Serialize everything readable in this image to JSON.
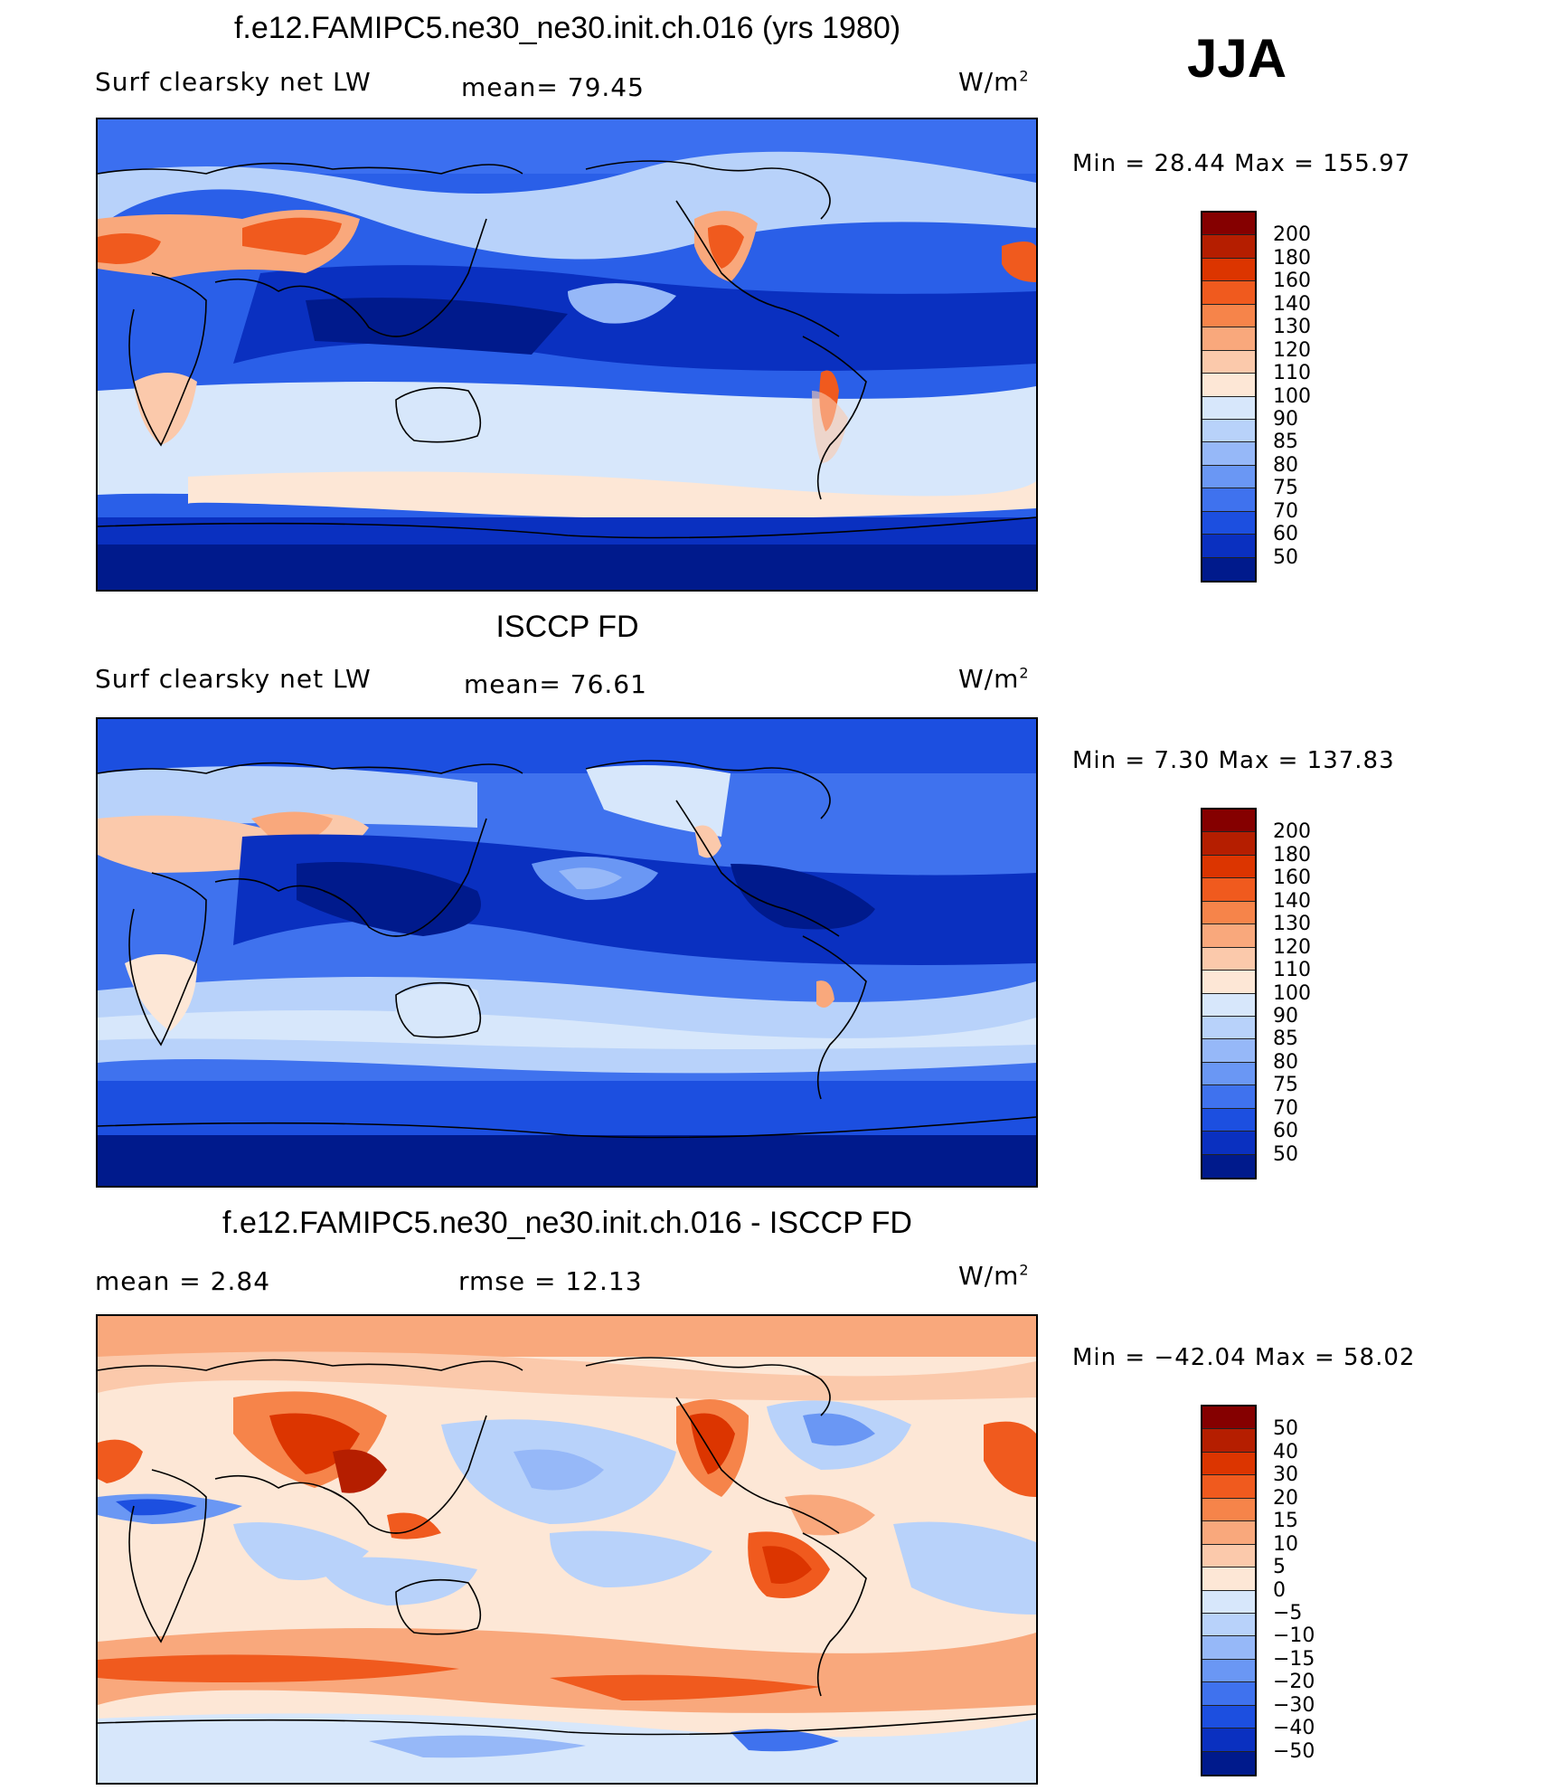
{
  "season": "JJA",
  "panels": [
    {
      "title": "f.e12.FAMIPC5.ne30_ne30.init.ch.016 (yrs 1980)",
      "left_label": "Surf clearsky net LW",
      "mid_label": "mean=   79.45",
      "units": "W/m",
      "units_sup": "2",
      "min_max": "Min =   28.44 Max = 155.97",
      "colorbar_labels": [
        "200",
        "180",
        "160",
        "140",
        "130",
        "120",
        "110",
        "100",
        "90",
        "85",
        "80",
        "75",
        "70",
        "60",
        "50"
      ],
      "colorbar_colors": [
        "#850000",
        "#b51e00",
        "#dc3500",
        "#f05a1e",
        "#f6844a",
        "#f9a87c",
        "#fbc9ab",
        "#fde7d6",
        "#d7e7fb",
        "#b8d2fa",
        "#96b8f8",
        "#6a97f4",
        "#3f72ee",
        "#1c4fe0",
        "#0a30c0",
        "#001a8c"
      ]
    },
    {
      "title": "ISCCP FD",
      "left_label": "Surf clearsky net LW",
      "mid_label": "mean=   76.61",
      "units": "W/m",
      "units_sup": "2",
      "min_max": "Min =    7.30 Max = 137.83",
      "colorbar_labels": [
        "200",
        "180",
        "160",
        "140",
        "130",
        "120",
        "110",
        "100",
        "90",
        "85",
        "80",
        "75",
        "70",
        "60",
        "50"
      ],
      "colorbar_colors": [
        "#850000",
        "#b51e00",
        "#dc3500",
        "#f05a1e",
        "#f6844a",
        "#f9a87c",
        "#fbc9ab",
        "#fde7d6",
        "#d7e7fb",
        "#b8d2fa",
        "#96b8f8",
        "#6a97f4",
        "#3f72ee",
        "#1c4fe0",
        "#0a30c0",
        "#001a8c"
      ]
    },
    {
      "title": "f.e12.FAMIPC5.ne30_ne30.init.ch.016 - ISCCP FD",
      "left_label": "mean =    2.84",
      "mid_label": "rmse =   12.13",
      "units": "W/m",
      "units_sup": "2",
      "min_max": "Min = −42.04 Max =  58.02",
      "colorbar_labels": [
        "50",
        "40",
        "30",
        "20",
        "15",
        "10",
        "5",
        "0",
        "−5",
        "−10",
        "−15",
        "−20",
        "−30",
        "−40",
        "−50"
      ],
      "colorbar_colors": [
        "#850000",
        "#b51e00",
        "#dc3500",
        "#f05a1e",
        "#f6844a",
        "#f9a87c",
        "#fbc9ab",
        "#fde7d6",
        "#d7e7fb",
        "#b8d2fa",
        "#96b8f8",
        "#6a97f4",
        "#3f72ee",
        "#1c4fe0",
        "#0a30c0",
        "#001a8c"
      ]
    }
  ]
}
